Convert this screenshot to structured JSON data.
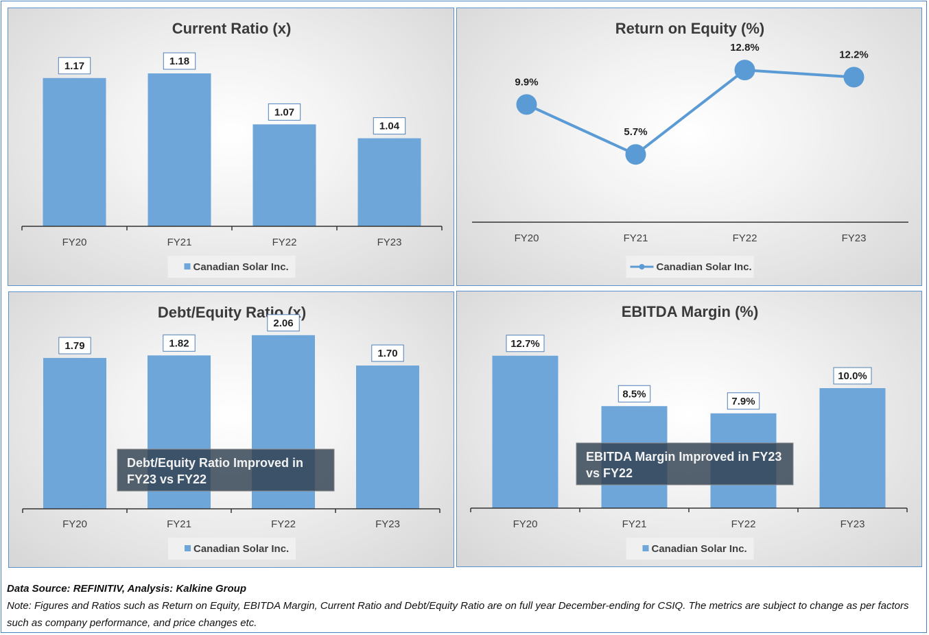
{
  "colors": {
    "bar": "#6fa6da",
    "line": "#5b9bd5",
    "annotation_bg": "#2f3f4f"
  },
  "legend_label": "Canadian Solar Inc.",
  "footer": {
    "source": "Data Source: REFINITIV, Analysis: Kalkine Group",
    "note": "Note: Figures and Ratios such as Return on Equity, EBITDA Margin, Current Ratio and Debt/Equity Ratio are on full year December-ending for CSIQ. The metrics are subject to change as per factors such as company performance, and price changes etc."
  },
  "chart_data": [
    {
      "type": "bar",
      "title": "Current Ratio (x)",
      "categories": [
        "FY20",
        "FY21",
        "FY22",
        "FY23"
      ],
      "series": [
        {
          "name": "Canadian Solar Inc.",
          "values": [
            1.17,
            1.18,
            1.07,
            1.04
          ]
        }
      ],
      "data_labels": [
        "1.17",
        "1.18",
        "1.07",
        "1.04"
      ],
      "ylim": [
        0.85,
        1.22
      ],
      "grid": false,
      "legend": "bottom"
    },
    {
      "type": "line",
      "title": "Return on Equity (%)",
      "categories": [
        "FY20",
        "FY21",
        "FY22",
        "FY23"
      ],
      "series": [
        {
          "name": "Canadian Solar Inc.",
          "values": [
            9.9,
            5.7,
            12.8,
            12.2
          ]
        }
      ],
      "data_labels": [
        "9.9%",
        "5.7%",
        "12.8%",
        "12.2%"
      ],
      "ylim": [
        0,
        15
      ],
      "grid": false,
      "legend": "bottom"
    },
    {
      "type": "bar",
      "title": "Debt/Equity Ratio (x)",
      "categories": [
        "FY20",
        "FY21",
        "FY22",
        "FY23"
      ],
      "series": [
        {
          "name": "Canadian Solar Inc.",
          "values": [
            1.79,
            1.82,
            2.06,
            1.7
          ]
        }
      ],
      "data_labels": [
        "1.79",
        "1.82",
        "2.06",
        "1.70"
      ],
      "ylim": [
        0,
        2.4
      ],
      "grid": false,
      "legend": "bottom",
      "annotation": "Debt/Equity Ratio Improved in FY23 vs FY22"
    },
    {
      "type": "bar",
      "title": "EBITDA Margin (%)",
      "categories": [
        "FY20",
        "FY21",
        "FY22",
        "FY23"
      ],
      "series": [
        {
          "name": "Canadian Solar Inc.",
          "values": [
            12.7,
            8.5,
            7.9,
            10.0
          ]
        }
      ],
      "data_labels": [
        "12.7%",
        "8.5%",
        "7.9%",
        "10.0%"
      ],
      "ylim": [
        0,
        14
      ],
      "grid": false,
      "legend": "bottom",
      "annotation": "EBITDA Margin Improved in FY23 vs FY22"
    }
  ]
}
